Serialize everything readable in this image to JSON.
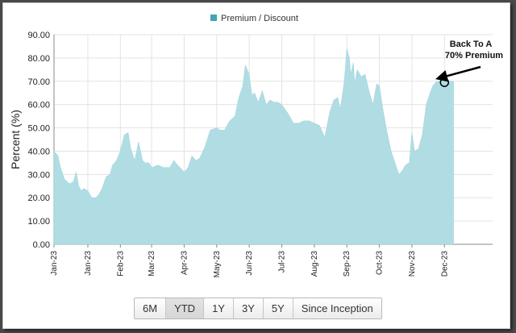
{
  "chart_data": {
    "type": "area",
    "legend": {
      "label": "Premium / Discount",
      "color": "#3ea6b5",
      "placement": "top-center"
    },
    "ylabel": "Percent (%)",
    "ylim": [
      0,
      90
    ],
    "yticks": [
      "0.00",
      "10.00",
      "20.00",
      "30.00",
      "40.00",
      "50.00",
      "60.00",
      "70.00",
      "80.00",
      "90.00"
    ],
    "xlim": [
      "2023-01-01",
      "2023-12-04"
    ],
    "xticks": [
      {
        "date": "2023-01-01",
        "label": "Jan-23"
      },
      {
        "date": "2023-01-27",
        "label": "Jan-23"
      },
      {
        "date": "2023-02-21",
        "label": "Feb-23"
      },
      {
        "date": "2023-03-17",
        "label": "Mar-23"
      },
      {
        "date": "2023-04-11",
        "label": "Apr-23"
      },
      {
        "date": "2023-05-06",
        "label": "May-23"
      },
      {
        "date": "2023-05-31",
        "label": "Jun-23"
      },
      {
        "date": "2023-06-25",
        "label": "Jul-23"
      },
      {
        "date": "2023-07-20",
        "label": "Aug-23"
      },
      {
        "date": "2023-08-14",
        "label": "Sep-23"
      },
      {
        "date": "2023-09-08",
        "label": "Oct-23"
      },
      {
        "date": "2023-10-03",
        "label": "Nov-23"
      },
      {
        "date": "2023-10-28",
        "label": "Dec-23"
      }
    ],
    "fill_color": "#b0dde3",
    "grid": true,
    "series": [
      {
        "x": [
          "2023-01-01",
          "2023-01-04",
          "2023-01-06",
          "2023-01-09",
          "2023-01-13",
          "2023-01-16",
          "2023-01-18",
          "2023-01-20",
          "2023-01-22",
          "2023-01-24",
          "2023-01-27",
          "2023-01-30",
          "2023-02-02",
          "2023-02-04",
          "2023-02-07",
          "2023-02-10",
          "2023-02-13",
          "2023-02-15",
          "2023-02-18",
          "2023-02-21",
          "2023-02-24",
          "2023-02-27",
          "2023-03-01",
          "2023-03-04",
          "2023-03-07",
          "2023-03-10",
          "2023-03-12",
          "2023-03-15",
          "2023-03-17",
          "2023-03-22",
          "2023-03-26",
          "2023-03-31",
          "2023-04-03",
          "2023-04-06",
          "2023-04-11",
          "2023-04-14",
          "2023-04-17",
          "2023-04-20",
          "2023-04-23",
          "2023-04-27",
          "2023-05-01",
          "2023-05-06",
          "2023-05-09",
          "2023-05-12",
          "2023-05-16",
          "2023-05-20",
          "2023-05-23",
          "2023-05-26",
          "2023-05-28",
          "2023-05-31",
          "2023-06-02",
          "2023-06-04",
          "2023-06-07",
          "2023-06-10",
          "2023-06-13",
          "2023-06-16",
          "2023-06-19",
          "2023-06-22",
          "2023-06-25",
          "2023-06-30",
          "2023-07-04",
          "2023-07-08",
          "2023-07-12",
          "2023-07-16",
          "2023-07-20",
          "2023-07-24",
          "2023-07-28",
          "2023-08-01",
          "2023-08-04",
          "2023-08-07",
          "2023-08-09",
          "2023-08-12",
          "2023-08-14",
          "2023-08-16",
          "2023-08-17",
          "2023-08-19",
          "2023-08-20",
          "2023-08-22",
          "2023-08-25",
          "2023-08-28",
          "2023-08-31",
          "2023-09-03",
          "2023-09-06",
          "2023-09-08",
          "2023-09-11",
          "2023-09-14",
          "2023-09-17",
          "2023-09-20",
          "2023-09-23",
          "2023-09-26",
          "2023-09-28",
          "2023-10-01",
          "2023-10-03",
          "2023-10-05",
          "2023-10-08",
          "2023-10-11",
          "2023-10-14",
          "2023-10-17",
          "2023-10-19",
          "2023-10-22",
          "2023-10-24",
          "2023-10-26",
          "2023-10-28",
          "2023-10-30",
          "2023-11-01",
          "2023-11-02",
          "2023-11-04"
        ],
        "y": [
          40,
          38,
          33,
          28,
          26,
          27,
          31,
          25,
          23,
          24,
          23,
          20,
          20,
          21,
          24,
          29,
          30,
          34,
          36,
          40,
          47,
          48,
          41,
          36,
          44,
          36,
          35,
          35,
          33,
          34,
          33,
          33,
          36,
          34,
          31,
          33,
          38,
          36,
          37,
          42,
          49,
          50,
          49,
          49,
          53,
          55,
          63,
          68,
          77,
          73,
          64,
          65,
          61,
          66,
          60,
          62,
          61,
          61,
          60,
          56,
          52,
          52,
          53,
          53,
          52,
          51,
          46,
          57,
          62,
          63,
          58,
          70,
          84,
          80,
          73,
          78,
          69,
          75,
          72,
          73,
          66,
          60,
          69,
          68,
          57,
          48,
          40,
          35,
          30,
          32,
          34,
          35,
          48,
          40,
          41,
          47,
          60,
          65,
          68,
          70,
          70,
          70,
          70,
          70,
          70,
          70,
          70
        ]
      }
    ],
    "annotation": {
      "line1": "Back To A",
      "line2": "70% Premium",
      "date": "2023-10-28",
      "value": 69.5
    }
  },
  "range_buttons": [
    {
      "label": "6M",
      "active": false
    },
    {
      "label": "YTD",
      "active": true
    },
    {
      "label": "1Y",
      "active": false
    },
    {
      "label": "3Y",
      "active": false
    },
    {
      "label": "5Y",
      "active": false
    },
    {
      "label": "Since Inception",
      "active": false
    }
  ]
}
